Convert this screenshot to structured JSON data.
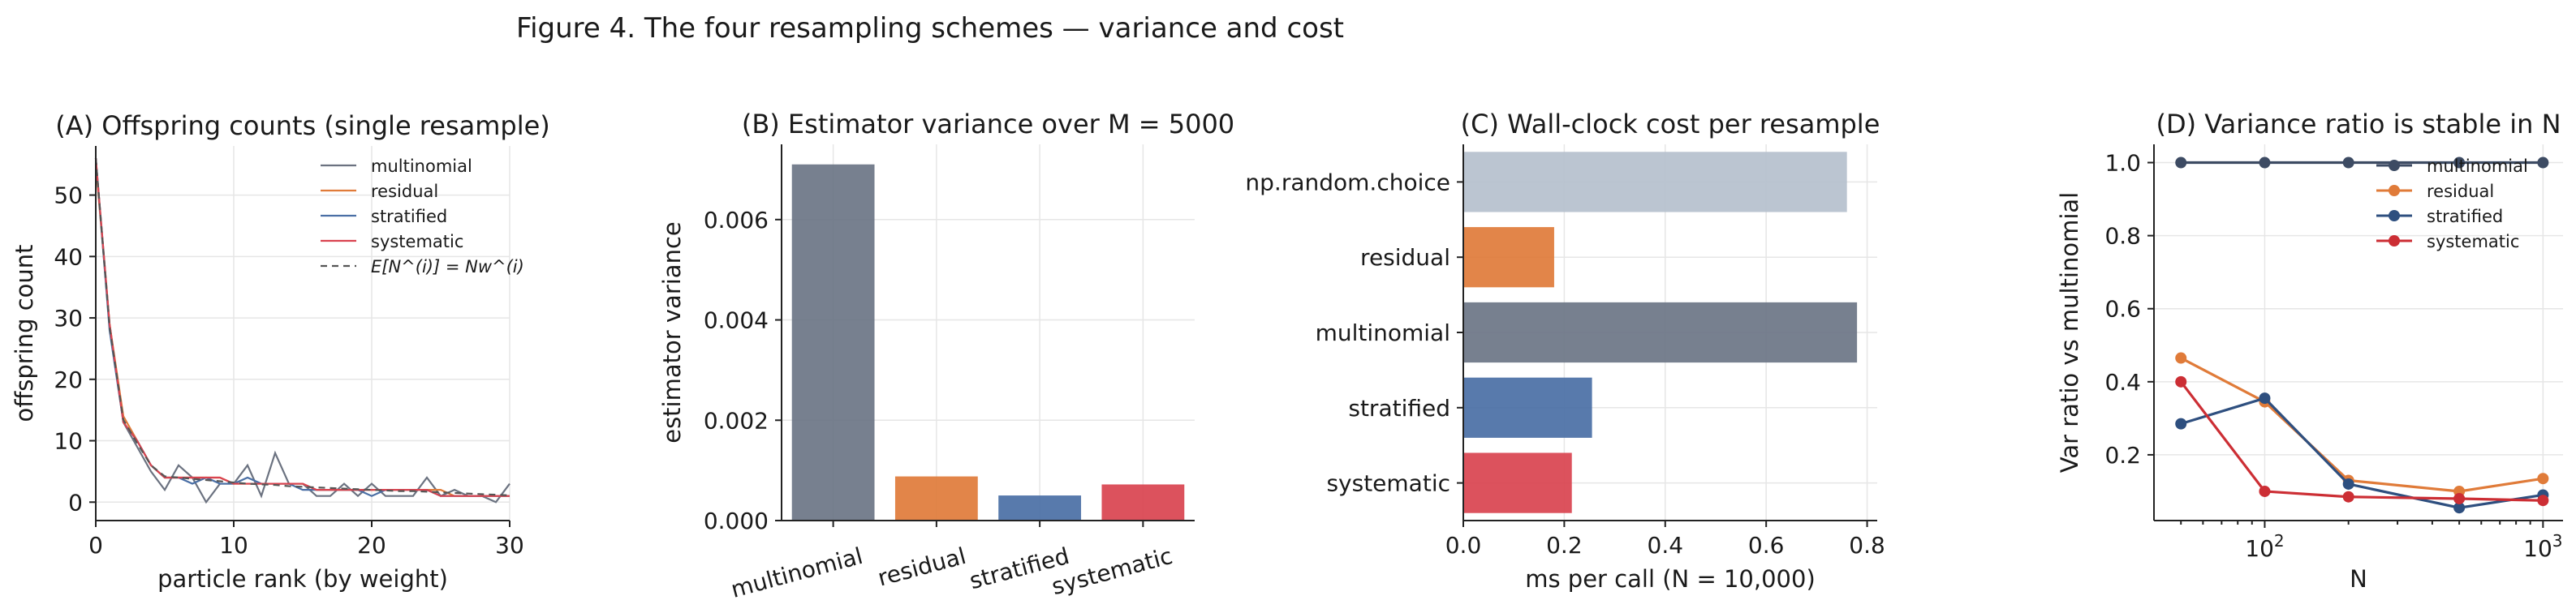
{
  "figure": {
    "title": "Figure 4. The four resampling schemes — variance and cost"
  },
  "chart_data": [
    {
      "id": "A",
      "type": "line",
      "title": "(A) Offspring counts (single resample)",
      "xlabel": "particle rank (by weight)",
      "ylabel": "offspring count",
      "xlim": [
        0,
        30
      ],
      "ylim": [
        -3,
        58
      ],
      "xticks": [
        0,
        10,
        20,
        30
      ],
      "yticks": [
        0,
        10,
        20,
        30,
        40,
        50
      ],
      "grid": true,
      "legend": "top-right",
      "series": [
        {
          "name": "multinomial",
          "color": "#6b7280",
          "dash": "",
          "x": [
            0,
            1,
            2,
            3,
            4,
            5,
            6,
            7,
            8,
            9,
            10,
            11,
            12,
            13,
            14,
            15,
            16,
            17,
            18,
            19,
            20,
            21,
            22,
            23,
            24,
            25,
            26,
            27,
            28,
            29,
            30
          ],
          "y": [
            56,
            29,
            13,
            9,
            5,
            2,
            6,
            4,
            0,
            3,
            3,
            6,
            1,
            8,
            3,
            3,
            1,
            1,
            3,
            1,
            3,
            1,
            1,
            1,
            4,
            1,
            2,
            1,
            1,
            0,
            3
          ]
        },
        {
          "name": "residual",
          "color": "#e07b39",
          "dash": "",
          "x": [
            0,
            1,
            2,
            3,
            4,
            5,
            6,
            7,
            8,
            9,
            10,
            11,
            12,
            13,
            14,
            15,
            16,
            17,
            18,
            19,
            20,
            21,
            22,
            23,
            24,
            25,
            26,
            27,
            28,
            29,
            30
          ],
          "y": [
            55,
            29,
            14,
            10,
            6,
            4,
            4,
            4,
            4,
            4,
            3,
            3,
            3,
            3,
            3,
            3,
            2,
            2,
            2,
            2,
            2,
            2,
            2,
            2,
            2,
            2,
            1,
            1,
            1,
            1,
            1
          ]
        },
        {
          "name": "stratified",
          "color": "#4a6fa5",
          "dash": "",
          "x": [
            0,
            1,
            2,
            3,
            4,
            5,
            6,
            7,
            8,
            9,
            10,
            11,
            12,
            13,
            14,
            15,
            16,
            17,
            18,
            19,
            20,
            21,
            22,
            23,
            24,
            25,
            26,
            27,
            28,
            29,
            30
          ],
          "y": [
            56,
            28,
            13,
            10,
            6,
            4,
            4,
            3,
            4,
            3,
            3,
            4,
            3,
            3,
            3,
            2,
            2,
            2,
            2,
            2,
            1,
            2,
            2,
            2,
            2,
            1,
            1,
            1,
            1,
            1,
            1
          ]
        },
        {
          "name": "systematic",
          "color": "#d9434f",
          "dash": "",
          "x": [
            0,
            1,
            2,
            3,
            4,
            5,
            6,
            7,
            8,
            9,
            10,
            11,
            12,
            13,
            14,
            15,
            16,
            17,
            18,
            19,
            20,
            21,
            22,
            23,
            24,
            25,
            26,
            27,
            28,
            29,
            30
          ],
          "y": [
            56,
            29,
            13,
            10,
            6,
            4,
            4,
            4,
            4,
            4,
            3,
            3,
            3,
            3,
            3,
            3,
            2,
            2,
            2,
            2,
            2,
            2,
            2,
            2,
            2,
            1,
            1,
            1,
            1,
            1,
            1
          ]
        },
        {
          "name": "E[N^(i)] = Nw^(i)",
          "color": "#555555",
          "dash": "8,6",
          "x": [
            0,
            1,
            2,
            3,
            4,
            5,
            6,
            7,
            8,
            9,
            10,
            11,
            12,
            13,
            14,
            15,
            16,
            17,
            18,
            19,
            20,
            21,
            22,
            23,
            24,
            25,
            26,
            27,
            28,
            29,
            30
          ],
          "y": [
            56,
            28.5,
            13.4,
            9.6,
            6,
            4.2,
            4,
            3.8,
            3.6,
            3.4,
            3.2,
            3,
            2.9,
            2.8,
            2.6,
            2.5,
            2.4,
            2.3,
            2.2,
            2.1,
            2,
            1.9,
            1.8,
            1.8,
            1.7,
            1.6,
            1.5,
            1.4,
            1.3,
            1.2,
            1.1
          ]
        }
      ]
    },
    {
      "id": "B",
      "type": "bar",
      "title": "(B) Estimator variance over M = 5000",
      "xlabel": "",
      "ylabel": "estimator variance",
      "categories": [
        "multinomial",
        "residual",
        "stratified",
        "systematic"
      ],
      "values": [
        0.0071,
        0.00088,
        0.0005,
        0.00072
      ],
      "colors": [
        "#6b7585",
        "#e07b39",
        "#4a6fa5",
        "#d9434f"
      ],
      "ylim": [
        0,
        0.0075
      ],
      "yticks": [
        0.0,
        0.002,
        0.004,
        0.006
      ],
      "ytick_labels": [
        "0.000",
        "0.002",
        "0.004",
        "0.006"
      ],
      "grid": true
    },
    {
      "id": "C",
      "type": "bar",
      "orientation": "horizontal",
      "title": "(C) Wall-clock cost per resample",
      "xlabel": "ms per call (N = 10,000)",
      "ylabel": "",
      "categories": [
        "np.random.choice",
        "residual",
        "multinomial",
        "stratified",
        "systematic"
      ],
      "values": [
        0.76,
        0.18,
        0.78,
        0.255,
        0.215
      ],
      "colors": [
        "#b5c0cd",
        "#e07b39",
        "#6b7585",
        "#4a6fa5",
        "#d9434f"
      ],
      "xlim": [
        0,
        0.82
      ],
      "xticks": [
        0.0,
        0.2,
        0.4,
        0.6,
        0.8
      ],
      "xtick_labels": [
        "0.0",
        "0.2",
        "0.4",
        "0.6",
        "0.8"
      ],
      "grid": true
    },
    {
      "id": "D",
      "type": "line",
      "title": "(D) Variance ratio is stable in N",
      "xlabel": "N",
      "ylabel": "Var ratio vs multinomial",
      "xscale": "log",
      "xlim": [
        40,
        1180
      ],
      "ylim": [
        0.02,
        1.05
      ],
      "xticks": [
        100,
        1000
      ],
      "xtick_labels": [
        "10^2",
        "10^3"
      ],
      "yticks": [
        0.2,
        0.4,
        0.6,
        0.8,
        1.0
      ],
      "ytick_labels": [
        "0.2",
        "0.4",
        "0.6",
        "0.8",
        "1.0"
      ],
      "grid": true,
      "legend": "top-right",
      "series": [
        {
          "name": "multinomial",
          "color": "#3d4b63",
          "x": [
            50,
            100,
            200,
            500,
            1000
          ],
          "y": [
            1.0,
            1.0,
            1.0,
            1.0,
            1.0
          ]
        },
        {
          "name": "residual",
          "color": "#e07b39",
          "x": [
            50,
            100,
            200,
            500,
            1000
          ],
          "y": [
            0.465,
            0.345,
            0.13,
            0.1,
            0.135
          ]
        },
        {
          "name": "stratified",
          "color": "#2e4f7f",
          "x": [
            50,
            100,
            200,
            500,
            1000
          ],
          "y": [
            0.285,
            0.355,
            0.12,
            0.055,
            0.09
          ]
        },
        {
          "name": "systematic",
          "color": "#cc2e34",
          "x": [
            50,
            100,
            200,
            500,
            1000
          ],
          "y": [
            0.4,
            0.1,
            0.085,
            0.08,
            0.075
          ]
        }
      ]
    }
  ]
}
